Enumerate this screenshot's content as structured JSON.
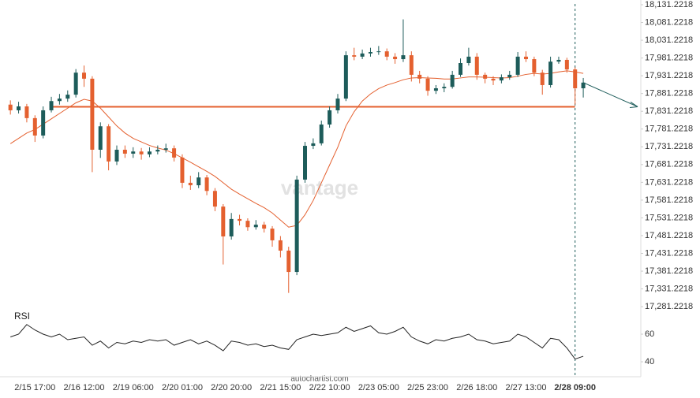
{
  "chart_data": {
    "type": "candlestick",
    "categories": [
      null,
      null,
      null,
      "2/15 17:00",
      null,
      null,
      null,
      null,
      null,
      "2/16 12:00",
      null,
      null,
      null,
      null,
      null,
      "2/19 06:00",
      null,
      null,
      null,
      null,
      null,
      "2/20 01:00",
      null,
      null,
      null,
      null,
      null,
      "2/20 20:00",
      null,
      null,
      null,
      null,
      null,
      "2/21 15:00",
      null,
      null,
      null,
      null,
      null,
      "2/22 10:00",
      null,
      null,
      null,
      null,
      null,
      "2/23 05:00",
      null,
      null,
      null,
      null,
      null,
      "2/25 23:00",
      null,
      null,
      null,
      null,
      null,
      "2/26 18:00",
      null,
      null,
      null,
      null,
      null,
      "2/27 13:00",
      null,
      null,
      null,
      null,
      null,
      "2/28 09:00",
      null
    ],
    "ohlc": [
      [
        17850,
        17862,
        17822,
        17834
      ],
      [
        17834,
        17858,
        17825,
        17845
      ],
      [
        17845,
        17852,
        17800,
        17812
      ],
      [
        17812,
        17820,
        17745,
        17763
      ],
      [
        17763,
        17845,
        17755,
        17834
      ],
      [
        17834,
        17872,
        17828,
        17860
      ],
      [
        17860,
        17880,
        17850,
        17867
      ],
      [
        17867,
        17890,
        17858,
        17878
      ],
      [
        17878,
        17950,
        17870,
        17940
      ],
      [
        17940,
        17960,
        17900,
        17923
      ],
      [
        17923,
        17930,
        17660,
        17723
      ],
      [
        17723,
        17800,
        17700,
        17789
      ],
      [
        17789,
        17795,
        17665,
        17690
      ],
      [
        17690,
        17735,
        17680,
        17723
      ],
      [
        17723,
        17735,
        17700,
        17712
      ],
      [
        17712,
        17730,
        17700,
        17718
      ],
      [
        17718,
        17728,
        17695,
        17710
      ],
      [
        17710,
        17730,
        17702,
        17718
      ],
      [
        17718,
        17735,
        17710,
        17723
      ],
      [
        17723,
        17740,
        17715,
        17727
      ],
      [
        17727,
        17735,
        17690,
        17701
      ],
      [
        17701,
        17710,
        17615,
        17630
      ],
      [
        17630,
        17650,
        17610,
        17623
      ],
      [
        17623,
        17660,
        17615,
        17645
      ],
      [
        17645,
        17652,
        17595,
        17607
      ],
      [
        17607,
        17615,
        17550,
        17563
      ],
      [
        17563,
        17570,
        17400,
        17479
      ],
      [
        17479,
        17545,
        17470,
        17528
      ],
      [
        17528,
        17540,
        17510,
        17523
      ],
      [
        17523,
        17530,
        17495,
        17505
      ],
      [
        17505,
        17525,
        17498,
        17512
      ],
      [
        17512,
        17520,
        17490,
        17501
      ],
      [
        17501,
        17508,
        17450,
        17468
      ],
      [
        17468,
        17480,
        17420,
        17439
      ],
      [
        17439,
        17450,
        17320,
        17379
      ],
      [
        17379,
        17650,
        17370,
        17639
      ],
      [
        17639,
        17745,
        17630,
        17734
      ],
      [
        17734,
        17755,
        17725,
        17741
      ],
      [
        17741,
        17805,
        17735,
        17794
      ],
      [
        17794,
        17845,
        17785,
        17834
      ],
      [
        17834,
        17880,
        17825,
        17867
      ],
      [
        17867,
        18000,
        17860,
        17989
      ],
      [
        17989,
        18010,
        17975,
        17985
      ],
      [
        17985,
        18005,
        17978,
        17994
      ],
      [
        17994,
        18010,
        17985,
        17998
      ],
      [
        17998,
        18015,
        17990,
        18000
      ],
      [
        18000,
        18008,
        17975,
        17985
      ],
      [
        17985,
        17995,
        17965,
        17978
      ],
      [
        17978,
        18090,
        17970,
        17989
      ],
      [
        17989,
        18000,
        17915,
        17934
      ],
      [
        17934,
        17945,
        17910,
        17923
      ],
      [
        17923,
        17930,
        17875,
        17889
      ],
      [
        17889,
        17905,
        17880,
        17896
      ],
      [
        17896,
        17910,
        17885,
        17900
      ],
      [
        17900,
        17945,
        17895,
        17934
      ],
      [
        17934,
        17980,
        17928,
        17967
      ],
      [
        17967,
        18010,
        17960,
        17985
      ],
      [
        17985,
        17995,
        17920,
        17934
      ],
      [
        17934,
        17940,
        17910,
        17923
      ],
      [
        17923,
        17930,
        17905,
        17918
      ],
      [
        17918,
        17935,
        17910,
        17927
      ],
      [
        17927,
        17945,
        17920,
        17934
      ],
      [
        17934,
        17998,
        17928,
        17985
      ],
      [
        17985,
        18000,
        17970,
        17978
      ],
      [
        17978,
        17985,
        17930,
        17940
      ],
      [
        17940,
        17948,
        17878,
        17905
      ],
      [
        17905,
        17985,
        17898,
        17971
      ],
      [
        17971,
        17985,
        17965,
        17976
      ],
      [
        17976,
        17982,
        17940,
        17949
      ],
      [
        17949,
        17955,
        17850,
        17896
      ],
      [
        17896,
        17925,
        17870,
        17912
      ]
    ],
    "up_color": "#1d5c5a",
    "down_color": "#e4602f",
    "moving_average": {
      "color": "#e4602f",
      "values": [
        17740,
        17755,
        17770,
        17780,
        17795,
        17810,
        17825,
        17840,
        17855,
        17865,
        17860,
        17840,
        17815,
        17790,
        17770,
        17755,
        17745,
        17735,
        17728,
        17722,
        17712,
        17700,
        17688,
        17675,
        17662,
        17648,
        17630,
        17612,
        17598,
        17585,
        17572,
        17560,
        17545,
        17525,
        17505,
        17510,
        17540,
        17580,
        17630,
        17680,
        17730,
        17790,
        17830,
        17860,
        17880,
        17895,
        17905,
        17912,
        17920,
        17925,
        17926,
        17925,
        17924,
        17922,
        17922,
        17925,
        17928,
        17928,
        17927,
        17926,
        17925,
        17926,
        17930,
        17935,
        17938,
        17936,
        17938,
        17942,
        17945,
        17942,
        17938
      ]
    },
    "support_level": 17844,
    "support_color": "#e4602f",
    "ylim": [
      17268.2,
      18144.5
    ],
    "yticks": [
      {
        "value": 18131.2218,
        "label": "18,131.2218"
      },
      {
        "value": 18081.2218,
        "label": "18,081.2218"
      },
      {
        "value": 18031.2218,
        "label": "18,031.2218"
      },
      {
        "value": 17981.2218,
        "label": "17,981.2218"
      },
      {
        "value": 17931.2218,
        "label": "17,931.2218"
      },
      {
        "value": 17881.2218,
        "label": "17,881.2218"
      },
      {
        "value": 17831.2218,
        "label": "17,831.2218"
      },
      {
        "value": 17781.2218,
        "label": "17,781.2218"
      },
      {
        "value": 17731.2218,
        "label": "17,731.2218"
      },
      {
        "value": 17681.2218,
        "label": "17,681.2218"
      },
      {
        "value": 17631.2218,
        "label": "17,631.2218"
      },
      {
        "value": 17581.2218,
        "label": "17,581.2218"
      },
      {
        "value": 17531.2218,
        "label": "17,531.2218"
      },
      {
        "value": 17481.2218,
        "label": "17,481.2218"
      },
      {
        "value": 17431.2218,
        "label": "17,431.2218"
      },
      {
        "value": 17381.2218,
        "label": "17,381.2218"
      },
      {
        "value": 17331.2218,
        "label": "17,331.2218"
      },
      {
        "value": 17281.2218,
        "label": "17,281.2218"
      }
    ],
    "rsi": {
      "label": "RSI",
      "color": "#222222",
      "ylim": [
        30.9,
        73.7
      ],
      "yticks": [
        60,
        40
      ],
      "values": [
        58,
        60,
        67,
        63,
        60,
        58,
        60,
        56,
        57,
        58,
        52,
        55,
        50,
        54,
        53,
        55,
        54,
        56,
        55,
        56,
        52,
        54,
        56,
        53,
        55,
        52,
        48,
        55,
        54,
        52,
        53,
        51,
        52,
        50,
        49,
        56,
        58,
        60,
        59,
        60,
        61,
        65,
        62,
        64,
        66,
        61,
        60,
        62,
        65,
        58,
        55,
        53,
        56,
        55,
        57,
        58,
        60,
        56,
        55,
        53,
        54,
        55,
        60,
        58,
        54,
        50,
        57,
        56,
        50,
        42,
        44
      ]
    },
    "source": "autochartist.com",
    "watermark": "vantage"
  }
}
